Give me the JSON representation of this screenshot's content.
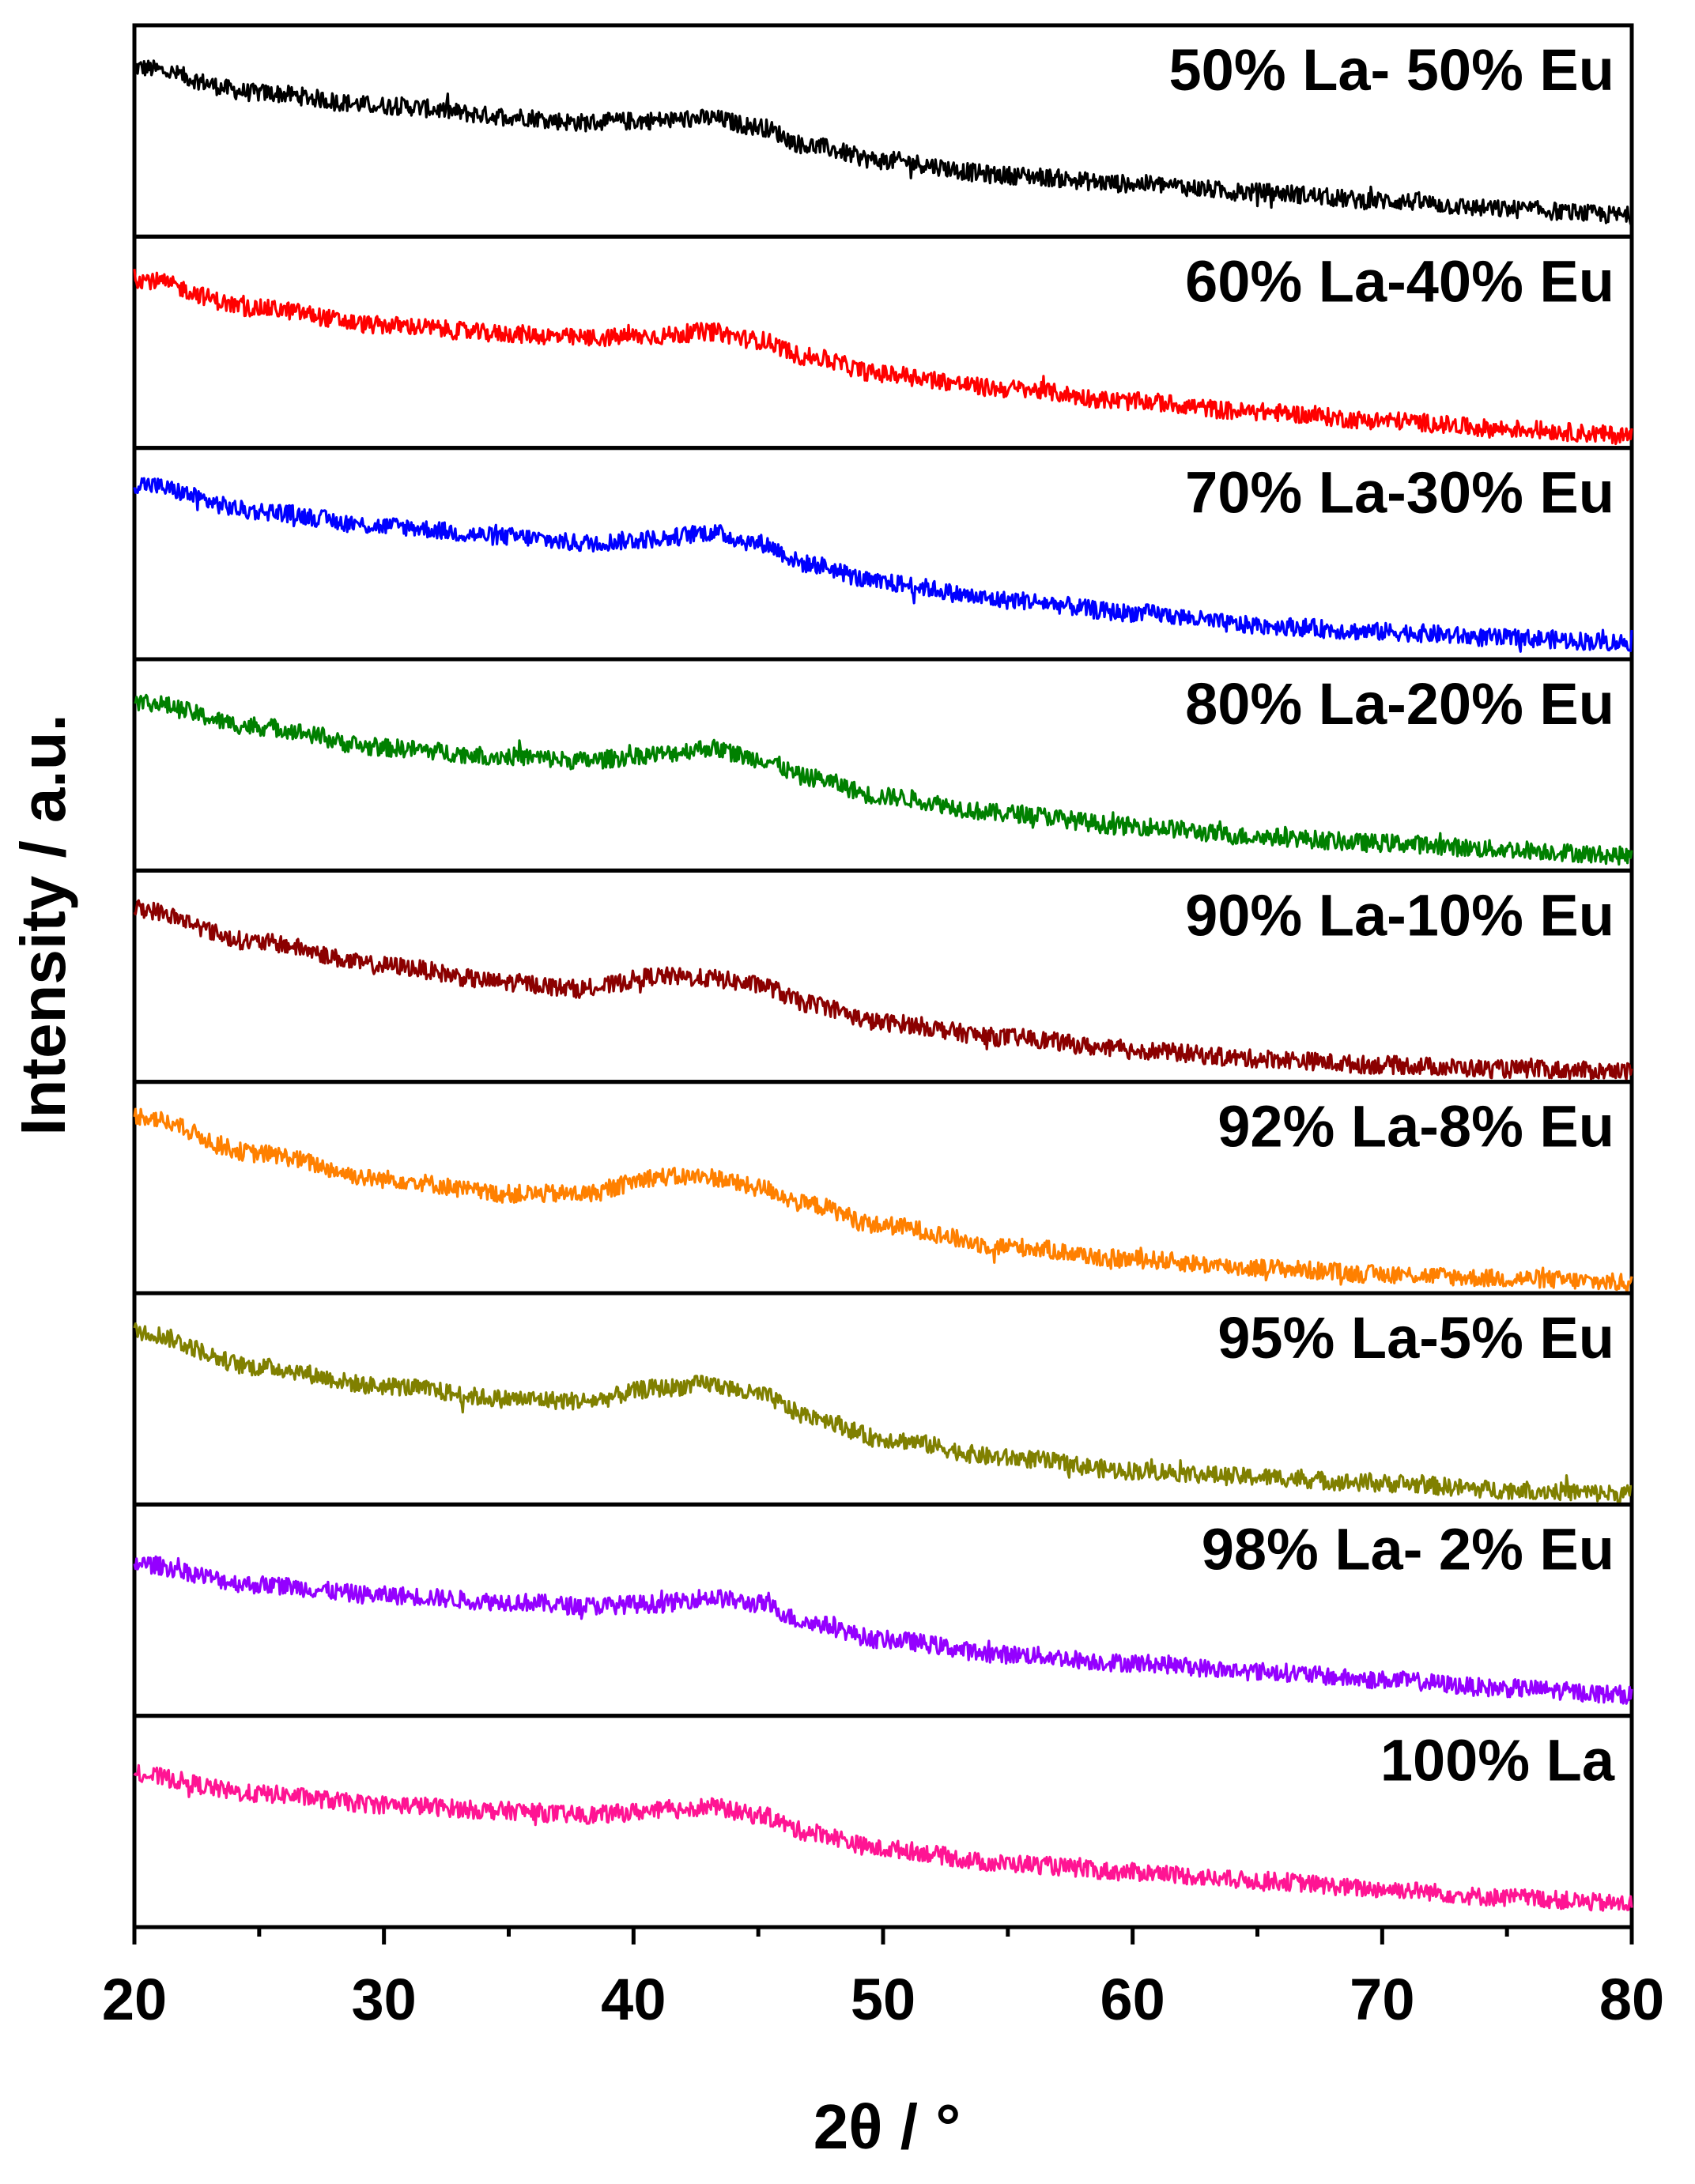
{
  "chart_data": {
    "type": "line",
    "title": "",
    "xlabel": "2θ / °",
    "ylabel": "Intensity / a.u.",
    "xlim": [
      20,
      80
    ],
    "xticks": [
      20,
      30,
      40,
      50,
      60,
      70,
      80
    ],
    "x": [
      20,
      25,
      30,
      35,
      38,
      41,
      43,
      45,
      47,
      50,
      55,
      60,
      65,
      70,
      75,
      80
    ],
    "series": [
      {
        "name": "50% La- 50% Eu",
        "color": "#000000",
        "values": [
          0.8,
          0.68,
          0.62,
          0.57,
          0.54,
          0.55,
          0.56,
          0.52,
          0.43,
          0.36,
          0.29,
          0.25,
          0.21,
          0.17,
          0.13,
          0.1
        ]
      },
      {
        "name": "60% La-40% Eu",
        "color": "#ff0000",
        "values": [
          0.8,
          0.66,
          0.58,
          0.54,
          0.52,
          0.53,
          0.55,
          0.51,
          0.43,
          0.35,
          0.28,
          0.22,
          0.17,
          0.13,
          0.09,
          0.06
        ]
      },
      {
        "name": "70% La-30% Eu",
        "color": "#0000ff",
        "values": [
          0.83,
          0.7,
          0.63,
          0.58,
          0.55,
          0.57,
          0.6,
          0.55,
          0.45,
          0.36,
          0.28,
          0.22,
          0.16,
          0.13,
          0.1,
          0.08
        ]
      },
      {
        "name": "80% La-20% Eu",
        "color": "#008000",
        "values": [
          0.8,
          0.68,
          0.58,
          0.54,
          0.52,
          0.55,
          0.58,
          0.53,
          0.44,
          0.35,
          0.27,
          0.21,
          0.16,
          0.13,
          0.1,
          0.07
        ]
      },
      {
        "name": "90% La-10% Eu",
        "color": "#8b0000",
        "values": [
          0.82,
          0.66,
          0.55,
          0.47,
          0.44,
          0.5,
          0.49,
          0.46,
          0.37,
          0.28,
          0.21,
          0.15,
          0.11,
          0.08,
          0.06,
          0.05
        ]
      },
      {
        "name": "92% La-8% Eu",
        "color": "#ff8000",
        "values": [
          0.84,
          0.66,
          0.54,
          0.47,
          0.47,
          0.55,
          0.55,
          0.5,
          0.42,
          0.32,
          0.22,
          0.16,
          0.12,
          0.09,
          0.07,
          0.05
        ]
      },
      {
        "name": "95% La-5% Eu",
        "color": "#808000",
        "values": [
          0.82,
          0.65,
          0.56,
          0.5,
          0.49,
          0.55,
          0.57,
          0.52,
          0.42,
          0.31,
          0.22,
          0.16,
          0.13,
          0.1,
          0.07,
          0.05
        ]
      },
      {
        "name": "98% La- 2% Eu",
        "color": "#9400ff",
        "values": [
          0.72,
          0.62,
          0.57,
          0.54,
          0.52,
          0.53,
          0.56,
          0.53,
          0.44,
          0.36,
          0.29,
          0.25,
          0.21,
          0.17,
          0.13,
          0.1
        ]
      },
      {
        "name": "100% La",
        "color": "#ff1493",
        "values": [
          0.72,
          0.63,
          0.58,
          0.55,
          0.53,
          0.55,
          0.57,
          0.53,
          0.45,
          0.37,
          0.3,
          0.26,
          0.22,
          0.18,
          0.14,
          0.11
        ]
      }
    ],
    "yaxis_ticks": "none",
    "grid": false,
    "layout": "stacked panels"
  }
}
